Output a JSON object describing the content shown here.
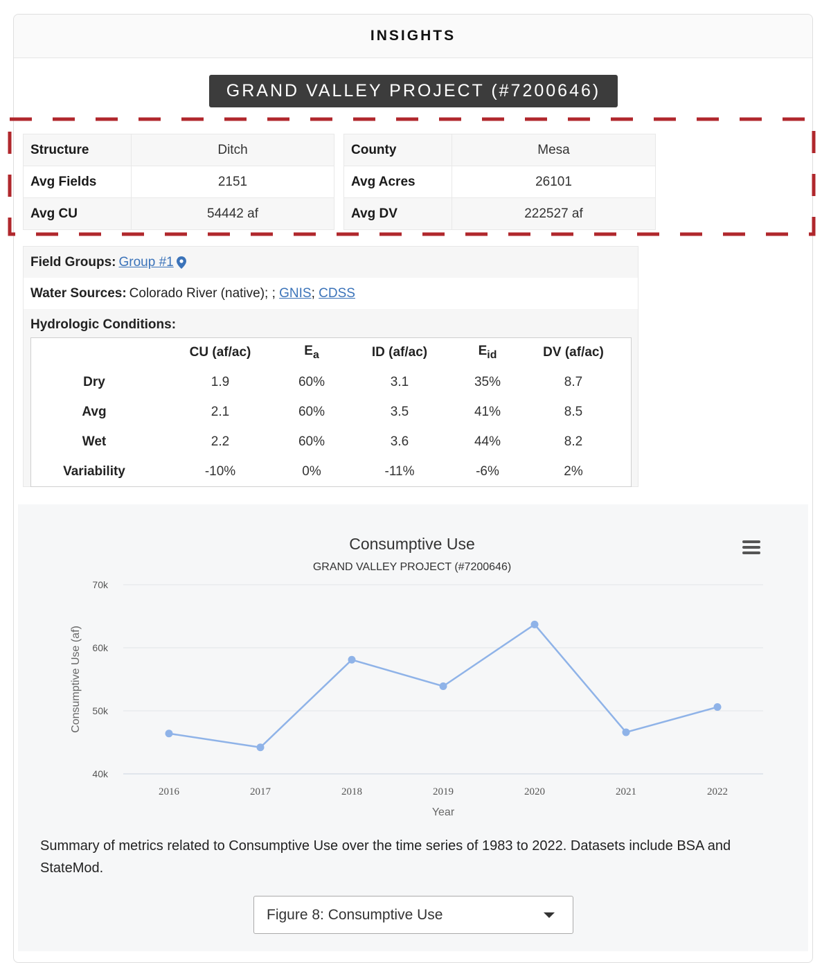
{
  "panel": {
    "header": "INSIGHTS"
  },
  "project_title": "GRAND VALLEY PROJECT (#7200646)",
  "stats_left": [
    {
      "label": "Structure",
      "value": "Ditch"
    },
    {
      "label": "Avg Fields",
      "value": "2151"
    },
    {
      "label": "Avg CU",
      "value": "54442 af"
    }
  ],
  "stats_right": [
    {
      "label": "County",
      "value": "Mesa"
    },
    {
      "label": "Avg Acres",
      "value": "26101"
    },
    {
      "label": "Avg DV",
      "value": "222527 af"
    }
  ],
  "field_groups": {
    "label": "Field Groups:",
    "link": "Group #1"
  },
  "water_sources": {
    "label": "Water Sources:",
    "text": "Colorado River (native); ;",
    "link1": "GNIS",
    "sep": ";",
    "link2": "CDSS"
  },
  "hydrologic": {
    "label": "Hydrologic Conditions:",
    "headers": [
      "CU (af/ac)",
      "E",
      "a",
      "ID (af/ac)",
      "E",
      "id",
      "DV (af/ac)"
    ],
    "rows": [
      {
        "name": "Dry",
        "cu": "1.9",
        "ea": "60%",
        "id": "3.1",
        "eid": "35%",
        "dv": "8.7"
      },
      {
        "name": "Avg",
        "cu": "2.1",
        "ea": "60%",
        "id": "3.5",
        "eid": "41%",
        "dv": "8.5"
      },
      {
        "name": "Wet",
        "cu": "2.2",
        "ea": "60%",
        "id": "3.6",
        "eid": "44%",
        "dv": "8.2"
      },
      {
        "name": "Variability",
        "cu": "-10%",
        "ea": "0%",
        "id": "-11%",
        "eid": "-6%",
        "dv": "2%"
      }
    ]
  },
  "chart_data": {
    "type": "line",
    "title": "Consumptive Use",
    "subtitle": "GRAND VALLEY PROJECT (#7200646)",
    "xlabel": "Year",
    "ylabel": "Consumptive Use (af)",
    "categories": [
      "2016",
      "2017",
      "2018",
      "2019",
      "2020",
      "2021",
      "2022"
    ],
    "series": [
      {
        "values": [
          46400,
          44200,
          58100,
          53900,
          63700,
          46600,
          50600
        ]
      }
    ],
    "ylim": [
      40000,
      70000
    ],
    "yticks": [
      40000,
      50000,
      60000,
      70000
    ],
    "ytick_labels": [
      "40k",
      "50k",
      "60k",
      "70k"
    ],
    "grid": true,
    "color": "#8fb3e8"
  },
  "caption": "Summary of metrics related to Consumptive Use over the time series of 1983 to 2022. Datasets include BSA and StateMod.",
  "figure_select": {
    "value": "Figure 8: Consumptive Use"
  }
}
